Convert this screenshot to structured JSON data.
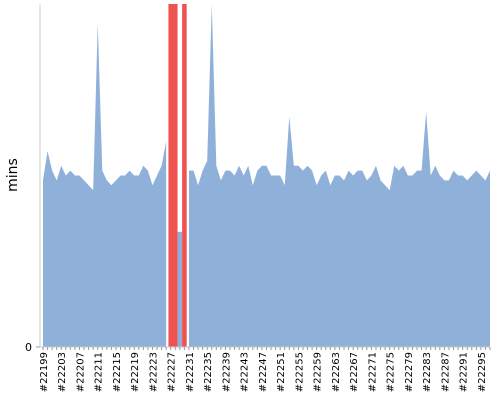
{
  "chart_data": {
    "type": "area",
    "ylabel": "mins",
    "categories": [
      "#22199",
      null,
      null,
      null,
      "#22203",
      null,
      null,
      null,
      "#22207",
      null,
      null,
      null,
      "#22211",
      null,
      null,
      null,
      "#22215",
      null,
      null,
      null,
      "#22219",
      null,
      null,
      null,
      "#22223",
      null,
      null,
      null,
      "#22227",
      null,
      null,
      null,
      "#22231",
      null,
      null,
      null,
      "#22235",
      null,
      null,
      null,
      "#22239",
      null,
      null,
      null,
      "#22243",
      null,
      null,
      null,
      "#22247",
      null,
      null,
      null,
      "#22251",
      null,
      null,
      null,
      "#22255",
      null,
      null,
      null,
      "#22259",
      null,
      null,
      null,
      "#22263",
      null,
      null,
      null,
      "#22267",
      null,
      null,
      null,
      "#22271",
      null,
      null,
      null,
      "#22275",
      null,
      null,
      null,
      "#22279",
      null,
      null,
      null,
      "#22283",
      null,
      null,
      null,
      "#22287",
      null,
      null,
      null,
      "#22291",
      null,
      null,
      null,
      "#22295",
      null,
      null
    ],
    "series": [
      {
        "color": "#8fb1d9",
        "values": [
          34,
          40,
          36,
          34,
          37,
          35,
          36,
          35,
          35,
          34,
          33,
          32,
          66,
          36,
          34,
          33,
          34,
          35,
          35,
          36,
          35,
          35,
          37,
          36,
          33,
          35,
          37,
          42,
          null,
          null,
          23.5,
          null,
          36,
          36,
          33,
          36,
          38,
          70,
          37,
          34,
          36,
          36,
          35,
          37,
          35,
          37,
          33,
          36,
          37,
          37,
          35,
          35,
          35,
          33,
          47,
          37,
          37,
          36,
          37,
          36,
          33,
          35,
          36,
          33,
          35,
          35,
          34,
          36,
          35,
          36,
          36,
          34,
          35,
          37,
          34,
          33,
          32,
          37,
          36,
          37,
          35,
          35,
          36,
          36,
          48,
          35,
          37,
          35,
          34,
          34,
          36,
          35,
          35,
          34,
          35,
          36,
          35,
          34,
          36
        ]
      },
      {
        "color": "#ef5350",
        "values": [
          null,
          null,
          null,
          null,
          null,
          null,
          null,
          null,
          null,
          null,
          null,
          null,
          null,
          null,
          null,
          null,
          null,
          null,
          null,
          null,
          null,
          null,
          null,
          null,
          null,
          null,
          null,
          null,
          70,
          70,
          null,
          70,
          null,
          null,
          null,
          null,
          null,
          null,
          null,
          null,
          null,
          null,
          null,
          null,
          null,
          null,
          null,
          null,
          null,
          null,
          null,
          null,
          null,
          null,
          null,
          null,
          null,
          null,
          null,
          null,
          null,
          null,
          null,
          null,
          null,
          null,
          null,
          null,
          null,
          null,
          null,
          null,
          null,
          null,
          null,
          null,
          null,
          null,
          null,
          null,
          null,
          null,
          null,
          null,
          null,
          null,
          null,
          null,
          null,
          null,
          null,
          null,
          null,
          null,
          null,
          null,
          null,
          null,
          null
        ]
      }
    ],
    "ylim": [
      0,
      70
    ],
    "yticks": [
      0
    ]
  }
}
